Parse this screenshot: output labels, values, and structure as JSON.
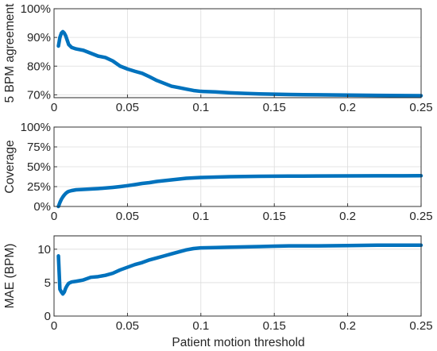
{
  "chart_data": [
    {
      "type": "line",
      "title": "",
      "xlabel": "",
      "ylabel": "5 BPM agreement",
      "xlim": [
        0,
        0.25
      ],
      "ylim": [
        0.69,
        1.0
      ],
      "xticks": [
        0,
        0.05,
        0.1,
        0.15,
        0.2,
        0.25
      ],
      "xtick_labels": [
        "0",
        "0.05",
        "0.1",
        "0.15",
        "0.2",
        "0.25"
      ],
      "yticks": [
        0.7,
        0.8,
        0.9,
        1.0
      ],
      "ytick_labels": [
        "70%",
        "80%",
        "90%",
        "100%"
      ],
      "grid": true,
      "series_color": "#0072bd",
      "series": [
        {
          "x": [
            0.003,
            0.004,
            0.005,
            0.006,
            0.007,
            0.008,
            0.009,
            0.01,
            0.012,
            0.015,
            0.02,
            0.025,
            0.03,
            0.035,
            0.04,
            0.045,
            0.05,
            0.055,
            0.06,
            0.065,
            0.07,
            0.075,
            0.08,
            0.085,
            0.09,
            0.095,
            0.1,
            0.11,
            0.12,
            0.13,
            0.14,
            0.15,
            0.16,
            0.18,
            0.2,
            0.22,
            0.25
          ],
          "y": [
            0.87,
            0.9,
            0.915,
            0.92,
            0.915,
            0.905,
            0.89,
            0.875,
            0.865,
            0.86,
            0.855,
            0.845,
            0.835,
            0.83,
            0.818,
            0.8,
            0.79,
            0.782,
            0.775,
            0.763,
            0.75,
            0.74,
            0.73,
            0.725,
            0.72,
            0.715,
            0.712,
            0.71,
            0.707,
            0.705,
            0.703,
            0.702,
            0.701,
            0.7,
            0.699,
            0.698,
            0.697
          ]
        }
      ]
    },
    {
      "type": "line",
      "title": "",
      "xlabel": "",
      "ylabel": "Coverage",
      "xlim": [
        0,
        0.25
      ],
      "ylim": [
        0,
        1.0
      ],
      "xticks": [
        0,
        0.05,
        0.1,
        0.15,
        0.2,
        0.25
      ],
      "xtick_labels": [
        "0",
        "0.05",
        "0.1",
        "0.15",
        "0.2",
        "0.25"
      ],
      "yticks": [
        0,
        0.25,
        0.5,
        0.75,
        1.0
      ],
      "ytick_labels": [
        "0%",
        "25%",
        "50%",
        "75%",
        "100%"
      ],
      "grid": true,
      "series_color": "#0072bd",
      "series": [
        {
          "x": [
            0.003,
            0.004,
            0.005,
            0.006,
            0.007,
            0.008,
            0.009,
            0.01,
            0.012,
            0.015,
            0.02,
            0.025,
            0.03,
            0.035,
            0.04,
            0.045,
            0.05,
            0.055,
            0.06,
            0.065,
            0.07,
            0.075,
            0.08,
            0.085,
            0.09,
            0.095,
            0.1,
            0.11,
            0.12,
            0.13,
            0.14,
            0.15,
            0.16,
            0.18,
            0.2,
            0.22,
            0.25
          ],
          "y": [
            0.0,
            0.05,
            0.09,
            0.12,
            0.145,
            0.165,
            0.18,
            0.19,
            0.2,
            0.21,
            0.215,
            0.22,
            0.225,
            0.232,
            0.24,
            0.25,
            0.262,
            0.275,
            0.29,
            0.3,
            0.315,
            0.325,
            0.335,
            0.345,
            0.355,
            0.36,
            0.365,
            0.37,
            0.375,
            0.378,
            0.38,
            0.381,
            0.382,
            0.384,
            0.385,
            0.386,
            0.387
          ]
        }
      ]
    },
    {
      "type": "line",
      "title": "",
      "xlabel": "Patient motion threshold",
      "ylabel": "MAE (BPM)",
      "xlim": [
        0,
        0.25
      ],
      "ylim": [
        0,
        12
      ],
      "xticks": [
        0,
        0.05,
        0.1,
        0.15,
        0.2,
        0.25
      ],
      "xtick_labels": [
        "0",
        "0.05",
        "0.1",
        "0.15",
        "0.2",
        "0.25"
      ],
      "yticks": [
        0,
        5,
        10
      ],
      "ytick_labels": [
        "0",
        "5",
        "10"
      ],
      "grid": true,
      "series_color": "#0072bd",
      "series": [
        {
          "x": [
            0.003,
            0.004,
            0.005,
            0.006,
            0.007,
            0.008,
            0.009,
            0.01,
            0.012,
            0.015,
            0.02,
            0.025,
            0.03,
            0.035,
            0.04,
            0.045,
            0.05,
            0.055,
            0.06,
            0.065,
            0.07,
            0.075,
            0.08,
            0.085,
            0.09,
            0.095,
            0.1,
            0.11,
            0.12,
            0.13,
            0.14,
            0.15,
            0.16,
            0.18,
            0.2,
            0.22,
            0.25
          ],
          "y": [
            9.0,
            4.0,
            3.6,
            3.3,
            3.6,
            4.2,
            4.6,
            4.9,
            5.1,
            5.2,
            5.4,
            5.8,
            5.9,
            6.1,
            6.4,
            6.9,
            7.3,
            7.7,
            8.0,
            8.4,
            8.7,
            9.0,
            9.3,
            9.6,
            9.9,
            10.1,
            10.2,
            10.25,
            10.3,
            10.35,
            10.4,
            10.45,
            10.5,
            10.5,
            10.55,
            10.6,
            10.6
          ]
        }
      ]
    }
  ]
}
